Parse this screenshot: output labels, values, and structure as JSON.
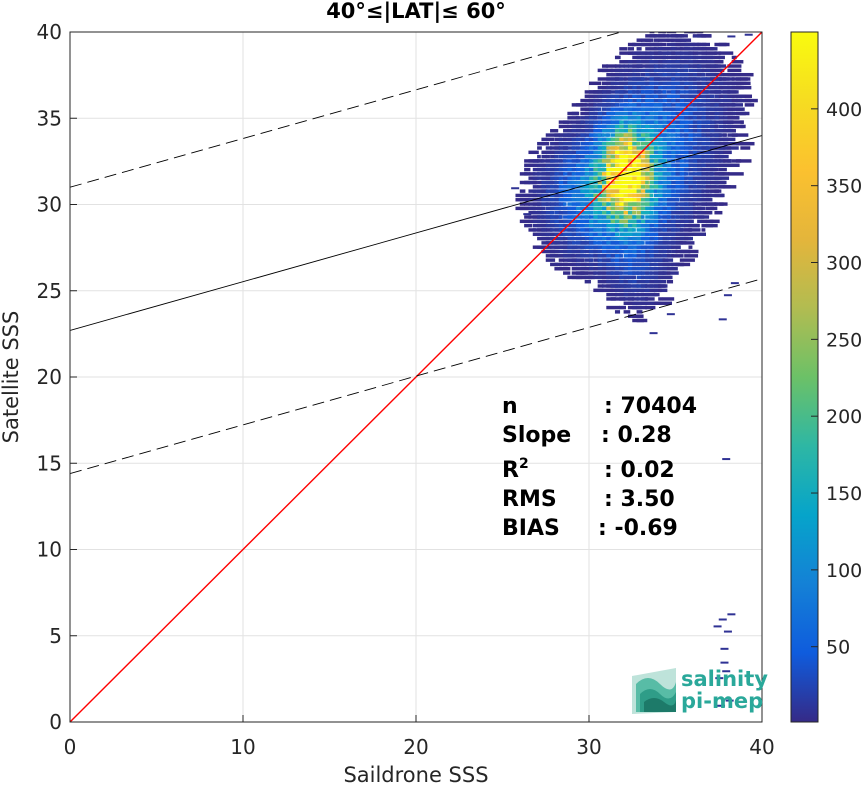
{
  "chart_data": {
    "type": "heatmap",
    "title": "40°≤|LAT|≤ 60°",
    "xlabel": "Saildrone SSS",
    "ylabel": "Satellite SSS",
    "xlim": [
      0,
      40
    ],
    "ylim": [
      0,
      40
    ],
    "xticks": [
      0,
      10,
      20,
      30,
      40
    ],
    "yticks": [
      0,
      5,
      10,
      15,
      20,
      25,
      30,
      35,
      40
    ],
    "grid": true,
    "colorbar": {
      "ticks": [
        50,
        100,
        150,
        200,
        250,
        300,
        350,
        400
      ],
      "range": [
        1,
        450
      ],
      "colormap": "parula"
    },
    "reference_lines": [
      {
        "name": "1:1",
        "color": "#ff0000",
        "style": "solid",
        "points": [
          [
            0,
            0
          ],
          [
            40,
            40
          ]
        ]
      },
      {
        "name": "regression",
        "color": "#000000",
        "style": "solid",
        "points": [
          [
            0,
            22.7
          ],
          [
            40,
            34.0
          ]
        ]
      },
      {
        "name": "upper",
        "color": "#000000",
        "style": "dashed",
        "points": [
          [
            0,
            31.0
          ],
          [
            40,
            42.3
          ]
        ]
      },
      {
        "name": "lower",
        "color": "#000000",
        "style": "dashed",
        "points": [
          [
            0,
            14.4
          ],
          [
            40,
            25.7
          ]
        ]
      }
    ],
    "stats": [
      {
        "key": "n",
        "sep": ":",
        "value": "70404"
      },
      {
        "key": "Slope",
        "sep": ":",
        "value": "0.28"
      },
      {
        "key": "R",
        "sup": "2",
        "sep": ":",
        "value": "0.02"
      },
      {
        "key": "RMS",
        "sep": ":",
        "value": "3.50"
      },
      {
        "key": "BIAS",
        "sep": ":",
        "value": "-0.69"
      }
    ],
    "density_clusters": [
      {
        "x": 32.0,
        "y": 31.8,
        "sx": 0.9,
        "sy": 1.6,
        "peak": 440
      },
      {
        "x": 31.0,
        "y": 30.5,
        "sx": 1.8,
        "sy": 1.8,
        "peak": 120
      },
      {
        "x": 33.5,
        "y": 33.0,
        "sx": 1.6,
        "sy": 2.2,
        "peak": 60
      },
      {
        "x": 35.0,
        "y": 35.5,
        "sx": 1.8,
        "sy": 2.2,
        "peak": 20
      },
      {
        "x": 32.5,
        "y": 27.0,
        "sx": 1.0,
        "sy": 1.6,
        "peak": 25
      }
    ],
    "outliers": [
      [
        37.5,
        6.0
      ],
      [
        37.8,
        5.3
      ],
      [
        37.2,
        5.6
      ],
      [
        38.0,
        6.3
      ],
      [
        37.6,
        4.3
      ],
      [
        37.6,
        3.5
      ],
      [
        37.7,
        3.0
      ],
      [
        37.3,
        2.6
      ],
      [
        37.9,
        1.3
      ],
      [
        37.4,
        1.0
      ],
      [
        37.7,
        15.3
      ],
      [
        38.2,
        25.5
      ],
      [
        37.8,
        24.8
      ],
      [
        37.5,
        23.4
      ],
      [
        34.5,
        23.7
      ],
      [
        33.5,
        22.6
      ],
      [
        25.5,
        31.0
      ],
      [
        26.2,
        29.5
      ],
      [
        38.0,
        39.8
      ],
      [
        39.0,
        39.9
      ],
      [
        36.0,
        39.8
      ]
    ]
  },
  "logo": {
    "line1": "salinity",
    "line2": "pi-mep"
  }
}
